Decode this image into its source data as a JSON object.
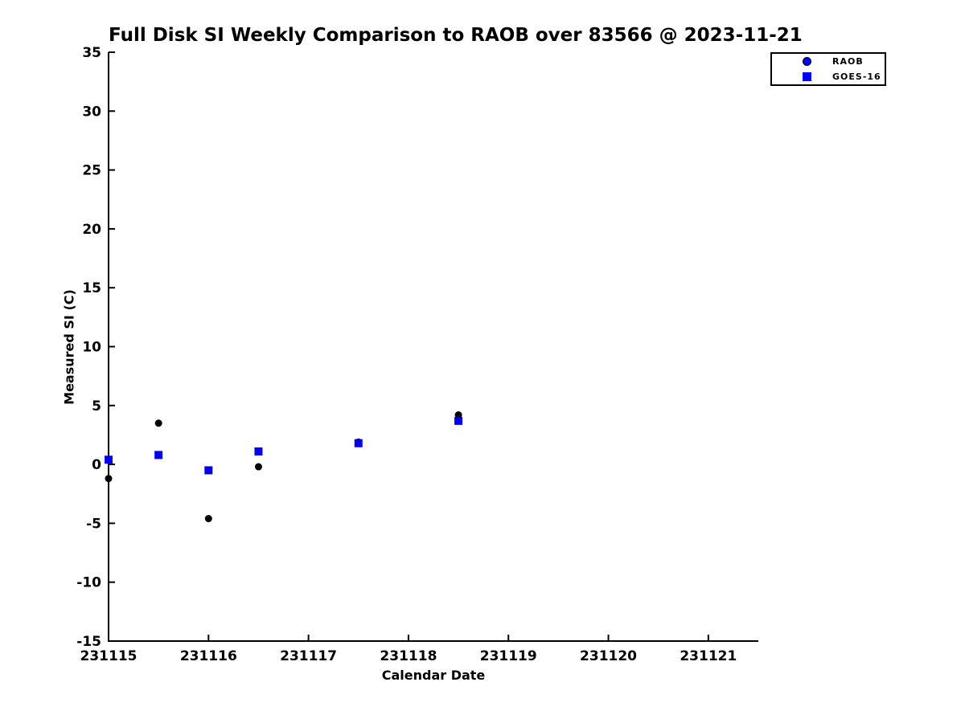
{
  "title": "Full Disk SI Weekly Comparison to RAOB over 83566 @ 2023-11-21",
  "colors": {
    "axis": "#000000",
    "text": "#000000",
    "raob_plot_marker": "#000000",
    "goes16_marker": "#0000EE",
    "legend_raob_marker": "#0000EE",
    "background": "#ffffff"
  },
  "chart_data": {
    "type": "scatter",
    "title": "Full Disk SI Weekly Comparison to RAOB over 83566 @ 2023-11-21",
    "xlabel": "Calendar Date",
    "ylabel": "Measured SI (C)",
    "xlim": [
      231115,
      231121.5
    ],
    "ylim": [
      -15,
      35
    ],
    "xticks": [
      231115,
      231116,
      231117,
      231118,
      231119,
      231120,
      231121
    ],
    "yticks": [
      -15,
      -10,
      -5,
      0,
      5,
      10,
      15,
      20,
      25,
      30,
      35
    ],
    "grid": false,
    "legend_position": "top-right",
    "legend_entries": [
      {
        "label": "RAOB",
        "marker": "circle",
        "marker_color": "#0000EE"
      },
      {
        "label": "GOES-16",
        "marker": "square",
        "marker_color": "#0000EE"
      }
    ],
    "series": [
      {
        "name": "RAOB",
        "marker": "circle",
        "plot_color": "#000000",
        "marker_size": 9,
        "points": [
          [
            231115.0,
            -1.2
          ],
          [
            231115.5,
            3.5
          ],
          [
            231116.0,
            -4.6
          ],
          [
            231116.5,
            -0.2
          ],
          [
            231117.5,
            1.9
          ],
          [
            231118.5,
            4.2
          ]
        ]
      },
      {
        "name": "GOES-16",
        "marker": "square",
        "plot_color": "#0000EE",
        "marker_size": 10,
        "points": [
          [
            231115.0,
            0.4
          ],
          [
            231115.5,
            0.8
          ],
          [
            231116.0,
            -0.5
          ],
          [
            231116.5,
            1.1
          ],
          [
            231117.5,
            1.8
          ],
          [
            231118.5,
            3.7
          ]
        ]
      }
    ]
  }
}
